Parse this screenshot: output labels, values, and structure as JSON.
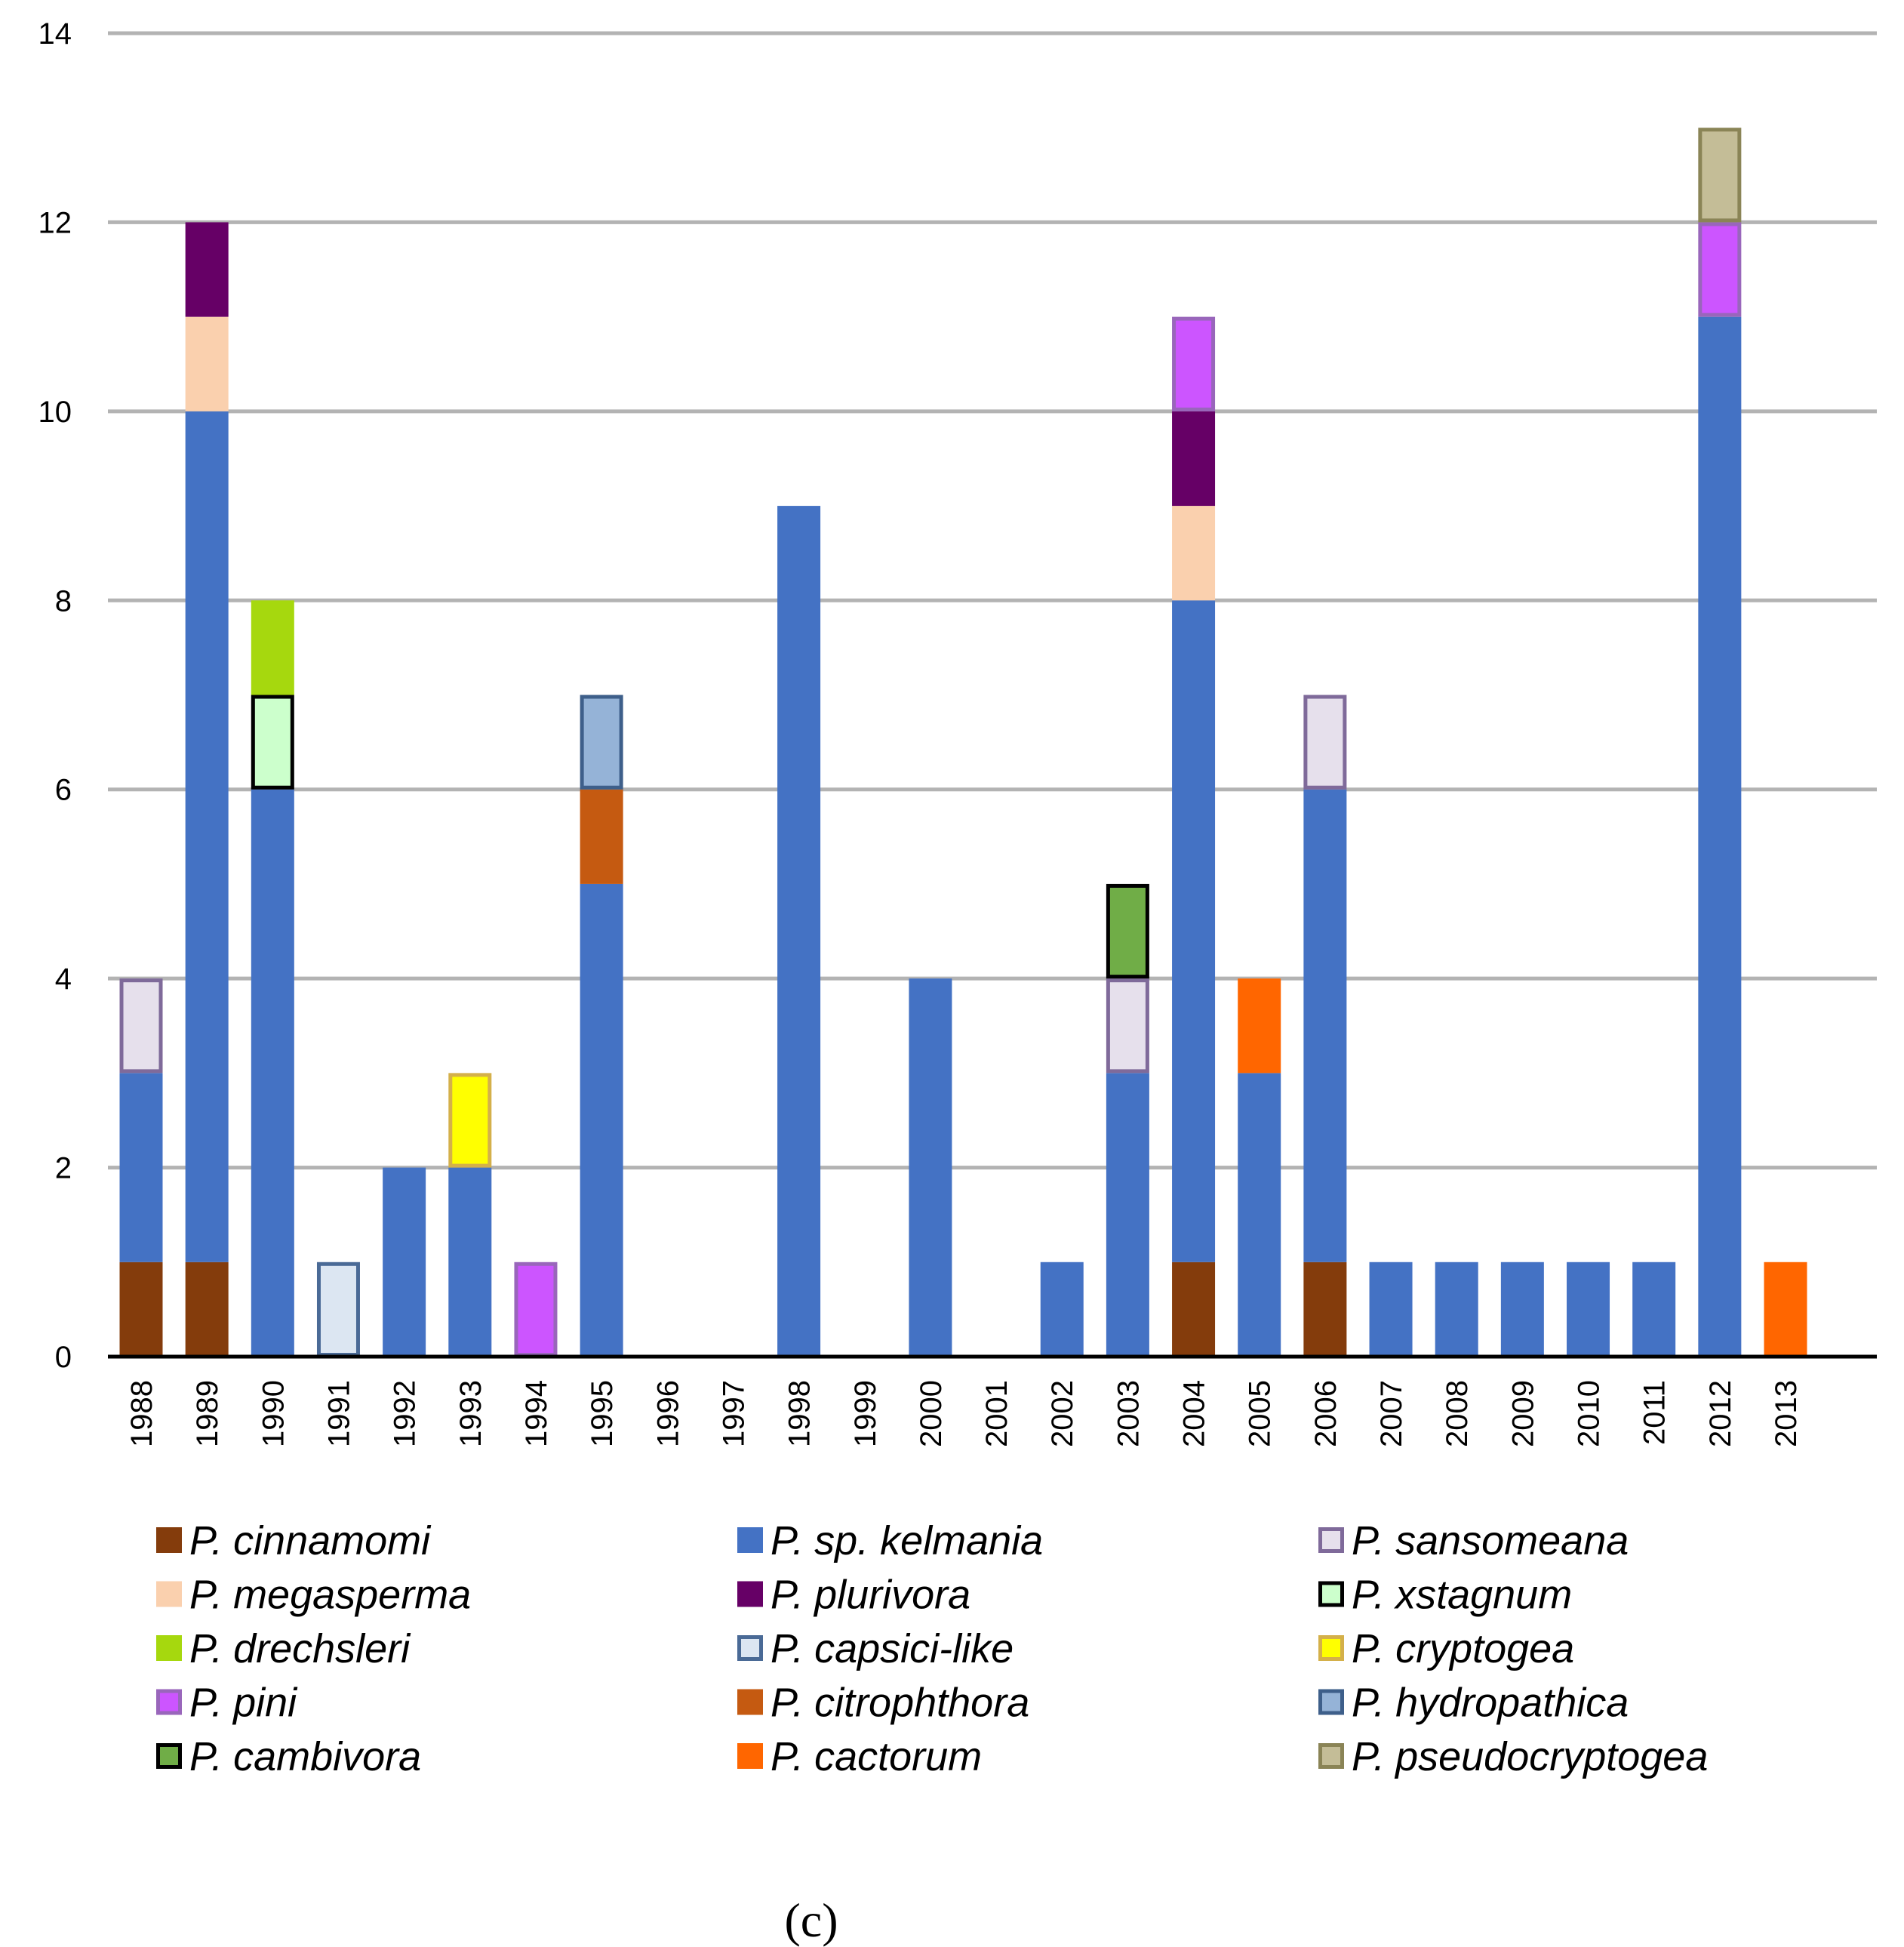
{
  "chart_data": {
    "type": "bar",
    "stacked": true,
    "title": "",
    "xlabel": "",
    "ylabel": "",
    "ylim": [
      0,
      14
    ],
    "yticks": [
      0,
      2,
      4,
      6,
      8,
      10,
      12,
      14
    ],
    "grid": true,
    "caption": "(c)",
    "legend_position": "bottom",
    "categories": [
      "1988",
      "1989",
      "1990",
      "1991",
      "1992",
      "1993",
      "1994",
      "1995",
      "1996",
      "1997",
      "1998",
      "1999",
      "2000",
      "2001",
      "2002",
      "2003",
      "2004",
      "2005",
      "2006",
      "2007",
      "2008",
      "2009",
      "2010",
      "2011",
      "2012",
      "2013"
    ],
    "series": [
      {
        "name": "P. cinnamomi",
        "label_prefix": "P.",
        "label_epithet": "cinnamomi",
        "color": "#843C0C",
        "border": "#843C0C",
        "values": [
          1,
          1,
          0,
          0,
          0,
          0,
          0,
          0,
          0,
          0,
          0,
          0,
          0,
          0,
          0,
          0,
          1,
          0,
          1,
          0,
          0,
          0,
          0,
          0,
          0,
          0
        ]
      },
      {
        "name": "P. sp. kelmania",
        "label_prefix": "P.",
        "label_epithet": "sp. kelmania",
        "color": "#4472C4",
        "border": "#4472C4",
        "values": [
          2,
          9,
          6,
          0,
          2,
          2,
          0,
          5,
          0,
          0,
          9,
          0,
          4,
          0,
          1,
          3,
          7,
          3,
          5,
          1,
          1,
          1,
          1,
          1,
          11,
          0
        ]
      },
      {
        "name": "P. sansomeana",
        "label_prefix": "P.",
        "label_epithet": "sansomeana",
        "color": "#E6E0EC",
        "border": "#7F6A9A",
        "values": [
          1,
          0,
          0,
          0,
          0,
          0,
          0,
          0,
          0,
          0,
          0,
          0,
          0,
          0,
          0,
          1,
          0,
          0,
          1,
          0,
          0,
          0,
          0,
          0,
          0,
          0
        ]
      },
      {
        "name": "P. megasperma",
        "label_prefix": "P.",
        "label_epithet": "megasperma",
        "color": "#FAD0AE",
        "border": "#FAD0AE",
        "values": [
          0,
          1,
          0,
          0,
          0,
          0,
          0,
          0,
          0,
          0,
          0,
          0,
          0,
          0,
          0,
          0,
          1,
          0,
          0,
          0,
          0,
          0,
          0,
          0,
          0,
          0
        ]
      },
      {
        "name": "P. plurivora",
        "label_prefix": "P.",
        "label_epithet": "plurivora",
        "color": "#660066",
        "border": "#660066",
        "values": [
          0,
          1,
          0,
          0,
          0,
          0,
          0,
          0,
          0,
          0,
          0,
          0,
          0,
          0,
          0,
          0,
          1,
          0,
          0,
          0,
          0,
          0,
          0,
          0,
          0,
          0
        ]
      },
      {
        "name": "P. xstagnum",
        "label_prefix": "P.",
        "label_epithet": "xstagnum",
        "color": "#CCFFCC",
        "border": "#000000",
        "values": [
          0,
          0,
          1,
          0,
          0,
          0,
          0,
          0,
          0,
          0,
          0,
          0,
          0,
          0,
          0,
          0,
          0,
          0,
          0,
          0,
          0,
          0,
          0,
          0,
          0,
          0
        ]
      },
      {
        "name": "P. drechsleri",
        "label_prefix": "P.",
        "label_epithet": "drechsleri",
        "color": "#A6D80E",
        "border": "#A6D80E",
        "values": [
          0,
          0,
          1,
          0,
          0,
          0,
          0,
          0,
          0,
          0,
          0,
          0,
          0,
          0,
          0,
          0,
          0,
          0,
          0,
          0,
          0,
          0,
          0,
          0,
          0,
          0
        ]
      },
      {
        "name": "P. capsici-like",
        "label_prefix": "P.",
        "label_epithet": "capsici-like",
        "color": "#DCE6F2",
        "border": "#4A6A96",
        "values": [
          0,
          0,
          0,
          1,
          0,
          0,
          0,
          0,
          0,
          0,
          0,
          0,
          0,
          0,
          0,
          0,
          0,
          0,
          0,
          0,
          0,
          0,
          0,
          0,
          0,
          0
        ]
      },
      {
        "name": "P. cryptogea",
        "label_prefix": "P.",
        "label_epithet": "cryptogea",
        "color": "#FFFF00",
        "border": "#D4B04A",
        "values": [
          0,
          0,
          0,
          0,
          0,
          1,
          0,
          0,
          0,
          0,
          0,
          0,
          0,
          0,
          0,
          0,
          0,
          0,
          0,
          0,
          0,
          0,
          0,
          0,
          0,
          0
        ]
      },
      {
        "name": "P. pini",
        "label_prefix": "P.",
        "label_epithet": "pini",
        "color": "#CC55FF",
        "border": "#9966BB",
        "values": [
          0,
          0,
          0,
          0,
          0,
          0,
          1,
          0,
          0,
          0,
          0,
          0,
          0,
          0,
          0,
          0,
          1,
          0,
          0,
          0,
          0,
          0,
          0,
          0,
          1,
          0
        ]
      },
      {
        "name": "P. citrophthora",
        "label_prefix": "P.",
        "label_epithet": "citrophthora",
        "color": "#C55A11",
        "border": "#C55A11",
        "values": [
          0,
          0,
          0,
          0,
          0,
          0,
          0,
          1,
          0,
          0,
          0,
          0,
          0,
          0,
          0,
          0,
          0,
          0,
          0,
          0,
          0,
          0,
          0,
          0,
          0,
          0
        ]
      },
      {
        "name": "P. hydropathica",
        "label_prefix": "P.",
        "label_epithet": "hydropathica",
        "color": "#95B3D7",
        "border": "#3E5F8A",
        "values": [
          0,
          0,
          0,
          0,
          0,
          0,
          0,
          1,
          0,
          0,
          0,
          0,
          0,
          0,
          0,
          0,
          0,
          0,
          0,
          0,
          0,
          0,
          0,
          0,
          0,
          0
        ]
      },
      {
        "name": "P. cambivora",
        "label_prefix": "P.",
        "label_epithet": "cambivora",
        "color": "#70AD47",
        "border": "#000000",
        "values": [
          0,
          0,
          0,
          0,
          0,
          0,
          0,
          0,
          0,
          0,
          0,
          0,
          0,
          0,
          0,
          1,
          0,
          0,
          0,
          0,
          0,
          0,
          0,
          0,
          0,
          0
        ]
      },
      {
        "name": "P. cactorum",
        "label_prefix": "P.",
        "label_epithet": "cactorum",
        "color": "#FF6600",
        "border": "#FF6600",
        "values": [
          0,
          0,
          0,
          0,
          0,
          0,
          0,
          0,
          0,
          0,
          0,
          0,
          0,
          0,
          0,
          0,
          0,
          1,
          0,
          0,
          0,
          0,
          0,
          0,
          0,
          1
        ]
      },
      {
        "name": "P. pseudocryptogea",
        "label_prefix": "P.",
        "label_epithet": "pseudocryptogea",
        "color": "#C4BD97",
        "border": "#8A8456",
        "values": [
          0,
          0,
          0,
          0,
          0,
          0,
          0,
          0,
          0,
          0,
          0,
          0,
          0,
          0,
          0,
          0,
          0,
          0,
          0,
          0,
          0,
          0,
          0,
          0,
          1,
          0
        ]
      }
    ]
  }
}
